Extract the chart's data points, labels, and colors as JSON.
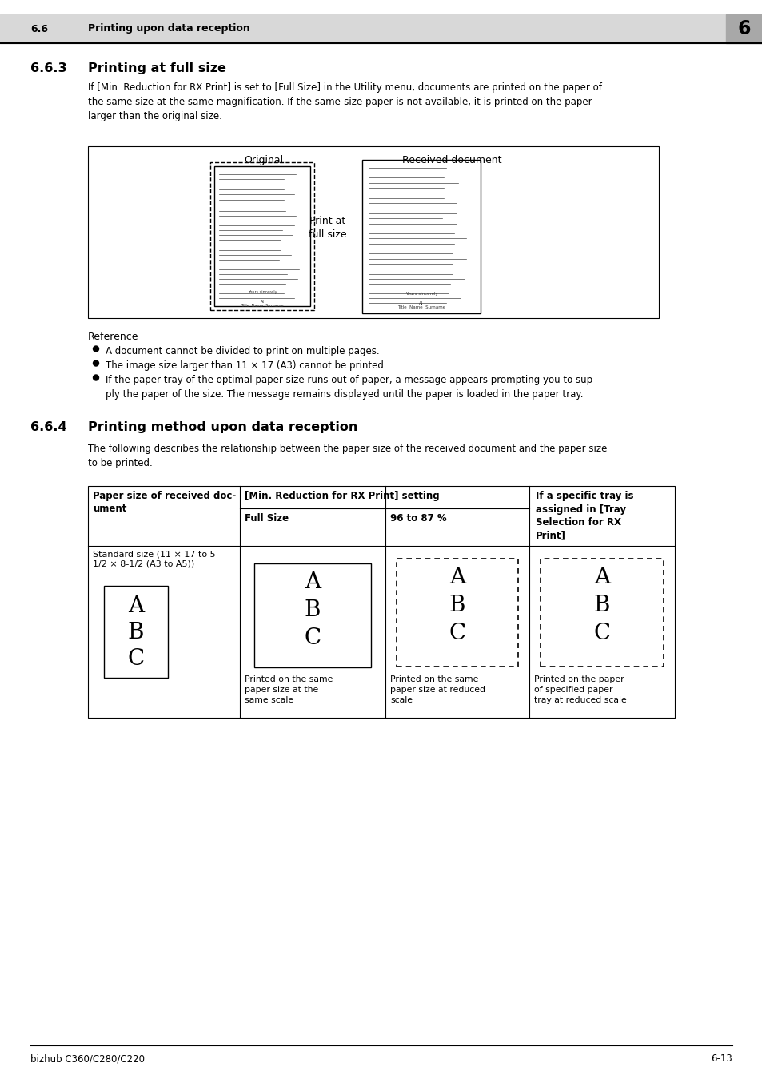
{
  "header_section": "6.6",
  "header_title": "Printing upon data reception",
  "header_number": "6",
  "section_663_num": "6.6.3",
  "section_663_title": "Printing at full size",
  "section_663_body": "If [Min. Reduction for RX Print] is set to [Full Size] in the Utility menu, documents are printed on the paper of\nthe same size at the same magnification. If the same-size paper is not available, it is printed on the paper\nlarger than the original size.",
  "diagram_label_original": "Original",
  "diagram_label_received": "Received document",
  "diagram_label_print": "Print at\nfull size",
  "reference_title": "Reference",
  "reference_bullets": [
    "A document cannot be divided to print on multiple pages.",
    "The image size larger than 11 × 17 (A3) cannot be printed.",
    "If the paper tray of the optimal paper size runs out of paper, a message appears prompting you to sup-\nply the paper of the size. The message remains displayed until the paper is loaded in the paper tray."
  ],
  "section_664_num": "6.6.4",
  "section_664_title": "Printing method upon data reception",
  "section_664_body": "The following describes the relationship between the paper size of the received document and the paper size\nto be printed.",
  "table_col1_header": "Paper size of received doc-\nument",
  "table_col2_header": "[Min. Reduction for RX Print] setting",
  "table_col2a_header": "Full Size",
  "table_col2b_header": "96 to 87 %",
  "table_col3_header": "If a specific tray is\nassigned in [Tray\nSelection for RX\nPrint]",
  "table_row1_col1": "Standard size (11 × 17 to 5-\n1/2 × 8-1/2 (A3 to A5))",
  "table_row1_col2a_caption": "Printed on the same\npaper size at the\nsame scale",
  "table_row1_col2b_caption": "Printed on the same\npaper size at reduced\nscale",
  "table_row1_col3_caption": "Printed on the paper\nof specified paper\ntray at reduced scale",
  "footer_left": "bizhub C360/C280/C220",
  "footer_right": "6-13",
  "bg_color": "#ffffff",
  "text_color": "#000000"
}
